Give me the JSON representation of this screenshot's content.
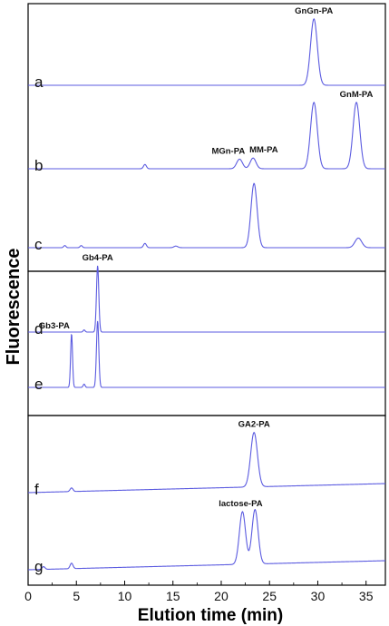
{
  "chart_data": {
    "type": "line",
    "xlabel": "Elution time (min)",
    "ylabel": "Fluorescence",
    "xlim": [
      0,
      37
    ],
    "x_ticks": [
      0,
      5,
      10,
      15,
      20,
      25,
      30,
      35
    ],
    "line_color": "#5b5be0",
    "grid": false,
    "groups": [
      {
        "name": "panel-1",
        "ylim": [
          0,
          3
        ],
        "traces": [
          {
            "name": "a",
            "baseline": 0.05,
            "peaks": [
              {
                "x": 29.6,
                "height": 0.62,
                "width": 0.35,
                "label": "GnGn-PA"
              }
            ]
          },
          {
            "name": "b",
            "baseline": 0.05,
            "peaks": [
              {
                "x": 12.1,
                "height": 0.04,
                "width": 0.15,
                "label": ""
              },
              {
                "x": 21.9,
                "height": 0.09,
                "width": 0.3,
                "label": "MGn-PA"
              },
              {
                "x": 23.3,
                "height": 0.1,
                "width": 0.3,
                "label": "MM-PA"
              },
              {
                "x": 29.6,
                "height": 0.62,
                "width": 0.35,
                "label": ""
              },
              {
                "x": 34.0,
                "height": 0.62,
                "width": 0.35,
                "label": "GnM-PA"
              }
            ]
          },
          {
            "name": "c",
            "baseline": 0.05,
            "peaks": [
              {
                "x": 3.8,
                "height": 0.02,
                "width": 0.12,
                "label": ""
              },
              {
                "x": 5.5,
                "height": 0.02,
                "width": 0.12,
                "label": ""
              },
              {
                "x": 12.1,
                "height": 0.04,
                "width": 0.15,
                "label": ""
              },
              {
                "x": 15.3,
                "height": 0.015,
                "width": 0.2,
                "label": ""
              },
              {
                "x": 23.4,
                "height": 0.6,
                "width": 0.32,
                "label": ""
              },
              {
                "x": 34.2,
                "height": 0.09,
                "width": 0.35,
                "label": ""
              }
            ]
          }
        ]
      },
      {
        "name": "panel-2",
        "ylim": [
          0,
          2
        ],
        "traces": [
          {
            "name": "d",
            "baseline": 0.05,
            "peaks": [
              {
                "x": 5.8,
                "height": 0.02,
                "width": 0.1,
                "label": ""
              },
              {
                "x": 7.2,
                "height": 0.62,
                "width": 0.12,
                "label": "Gb4-PA"
              }
            ]
          },
          {
            "name": "e",
            "baseline": 0.05,
            "peaks": [
              {
                "x": 4.5,
                "height": 0.5,
                "width": 0.1,
                "label": "Gb3-PA"
              },
              {
                "x": 5.8,
                "height": 0.03,
                "width": 0.1,
                "label": ""
              },
              {
                "x": 7.2,
                "height": 0.62,
                "width": 0.12,
                "label": ""
              }
            ]
          }
        ]
      },
      {
        "name": "panel-3",
        "ylim": [
          0,
          2
        ],
        "traces": [
          {
            "name": "f",
            "baseline": 0.05,
            "drift": 0.1,
            "peaks": [
              {
                "x": 4.5,
                "height": 0.04,
                "width": 0.15,
                "label": ""
              },
              {
                "x": 23.4,
                "height": 0.6,
                "width": 0.35,
                "label": "GA2-PA"
              }
            ]
          },
          {
            "name": "g",
            "baseline": 0.05,
            "drift": 0.1,
            "peaks": [
              {
                "x": 1.6,
                "height": 0.03,
                "width": 0.15,
                "label": ""
              },
              {
                "x": 4.5,
                "height": 0.06,
                "width": 0.15,
                "label": ""
              },
              {
                "x": 22.2,
                "height": 0.58,
                "width": 0.32,
                "label": "lactose-PA"
              },
              {
                "x": 23.5,
                "height": 0.6,
                "width": 0.32,
                "label": ""
              }
            ]
          }
        ]
      }
    ]
  }
}
